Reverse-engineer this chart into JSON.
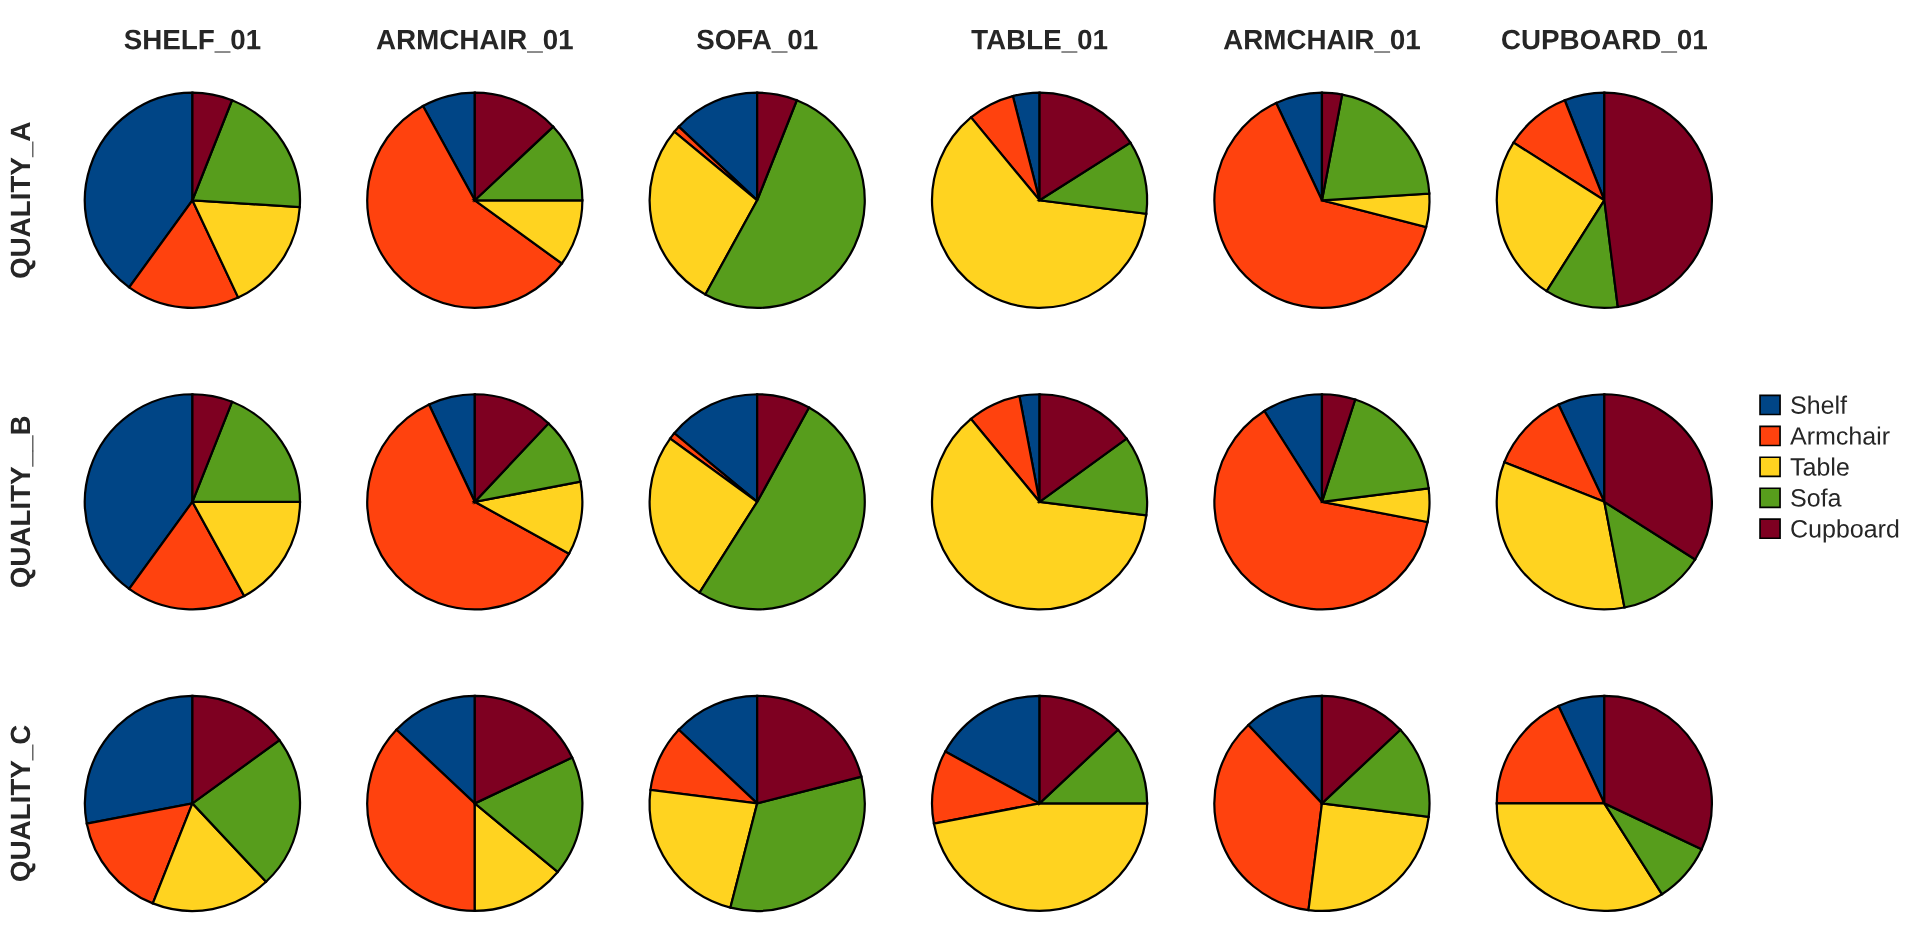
{
  "chart_data": [
    {
      "type": "pie",
      "title": "SHELF_01",
      "ylabel": "QUALITY_A",
      "legend": "right",
      "categories": [
        "Shelf",
        "Armchair",
        "Table",
        "Sofa",
        "Cupboard"
      ],
      "values": [
        40,
        17,
        17,
        20,
        6
      ],
      "colors": [
        "#004586",
        "#ff420e",
        "#ffd320",
        "#579d1c",
        "#7e0021"
      ]
    },
    {
      "type": "pie",
      "title": "ARMCHAIR_01",
      "categories": [
        null,
        null,
        null,
        null,
        null
      ],
      "values": [
        8,
        57,
        10,
        12,
        13
      ],
      "colors": [
        "#004586",
        "#ff420e",
        "#ffd320",
        "#579d1c",
        "#7e0021"
      ]
    },
    {
      "type": "pie",
      "title": "SOFA_01",
      "categories": [
        null,
        null,
        null,
        null,
        null
      ],
      "values": [
        13,
        1,
        28,
        52,
        6
      ],
      "colors": [
        "#004586",
        "#ff420e",
        "#ffd320",
        "#579d1c",
        "#7e0021"
      ]
    },
    {
      "type": "pie",
      "title": "TABLE_01",
      "categories": [
        null,
        null,
        null,
        null,
        null
      ],
      "values": [
        4,
        7,
        62,
        11,
        16
      ],
      "colors": [
        "#004586",
        "#ff420e",
        "#ffd320",
        "#579d1c",
        "#7e0021"
      ]
    },
    {
      "type": "pie",
      "title": "ARMCHAIR_01",
      "categories": [
        null,
        null,
        null,
        null,
        null
      ],
      "values": [
        7,
        64,
        5,
        21,
        3
      ],
      "colors": [
        "#004586",
        "#ff420e",
        "#ffd320",
        "#579d1c",
        "#7e0021"
      ]
    },
    {
      "type": "pie",
      "title": "CUPBOARD_01",
      "categories": [
        null,
        null,
        null,
        null,
        null
      ],
      "values": [
        6,
        10,
        25,
        11,
        48
      ],
      "colors": [
        "#004586",
        "#ff420e",
        "#ffd320",
        "#579d1c",
        "#7e0021"
      ]
    },
    {
      "type": "pie",
      "ylabel": "QUALITY__B",
      "categories": [
        null,
        null,
        null,
        null,
        null
      ],
      "values": [
        40,
        18,
        17,
        19,
        6
      ],
      "colors": [
        "#004586",
        "#ff420e",
        "#ffd320",
        "#579d1c",
        "#7e0021"
      ]
    },
    {
      "type": "pie",
      "categories": [
        null,
        null,
        null,
        null,
        null
      ],
      "values": [
        7,
        60,
        11,
        10,
        12
      ],
      "colors": [
        "#004586",
        "#ff420e",
        "#ffd320",
        "#579d1c",
        "#7e0021"
      ]
    },
    {
      "type": "pie",
      "categories": [
        null,
        null,
        null,
        null,
        null
      ],
      "values": [
        14,
        1,
        26,
        51,
        8
      ],
      "colors": [
        "#004586",
        "#ff420e",
        "#ffd320",
        "#579d1c",
        "#7e0021"
      ]
    },
    {
      "type": "pie",
      "categories": [
        null,
        null,
        null,
        null,
        null
      ],
      "values": [
        3,
        8,
        62,
        12,
        15
      ],
      "colors": [
        "#004586",
        "#ff420e",
        "#ffd320",
        "#579d1c",
        "#7e0021"
      ]
    },
    {
      "type": "pie",
      "categories": [
        null,
        null,
        null,
        null,
        null
      ],
      "values": [
        9,
        63,
        5,
        18,
        5
      ],
      "colors": [
        "#004586",
        "#ff420e",
        "#ffd320",
        "#579d1c",
        "#7e0021"
      ]
    },
    {
      "type": "pie",
      "categories": [
        null,
        null,
        null,
        null,
        null
      ],
      "values": [
        7,
        12,
        34,
        13,
        34
      ],
      "colors": [
        "#004586",
        "#ff420e",
        "#ffd320",
        "#579d1c",
        "#7e0021"
      ]
    },
    {
      "type": "pie",
      "ylabel": "QUALITY_C",
      "categories": [
        null,
        null,
        null,
        null,
        null
      ],
      "values": [
        28,
        16,
        18,
        23,
        15
      ],
      "colors": [
        "#004586",
        "#ff420e",
        "#ffd320",
        "#579d1c",
        "#7e0021"
      ]
    },
    {
      "type": "pie",
      "categories": [
        null,
        null,
        null,
        null,
        null
      ],
      "values": [
        13,
        37,
        14,
        18,
        18
      ],
      "colors": [
        "#004586",
        "#ff420e",
        "#ffd320",
        "#579d1c",
        "#7e0021"
      ]
    },
    {
      "type": "pie",
      "categories": [
        null,
        null,
        null,
        null,
        null
      ],
      "values": [
        13,
        10,
        23,
        33,
        21
      ],
      "colors": [
        "#004586",
        "#ff420e",
        "#ffd320",
        "#579d1c",
        "#7e0021"
      ]
    },
    {
      "type": "pie",
      "categories": [
        null,
        null,
        null,
        null,
        null
      ],
      "values": [
        17,
        11,
        47,
        12,
        13
      ],
      "colors": [
        "#004586",
        "#ff420e",
        "#ffd320",
        "#579d1c",
        "#7e0021"
      ]
    },
    {
      "type": "pie",
      "categories": [
        null,
        null,
        null,
        null,
        null
      ],
      "values": [
        12,
        36,
        25,
        14,
        13
      ],
      "colors": [
        "#004586",
        "#ff420e",
        "#ffd320",
        "#579d1c",
        "#7e0021"
      ]
    },
    {
      "type": "pie",
      "categories": [
        null,
        null,
        null,
        null,
        null
      ],
      "values": [
        7,
        18,
        34,
        9,
        32
      ],
      "colors": [
        "#004586",
        "#ff420e",
        "#ffd320",
        "#579d1c",
        "#7e0021"
      ]
    }
  ]
}
